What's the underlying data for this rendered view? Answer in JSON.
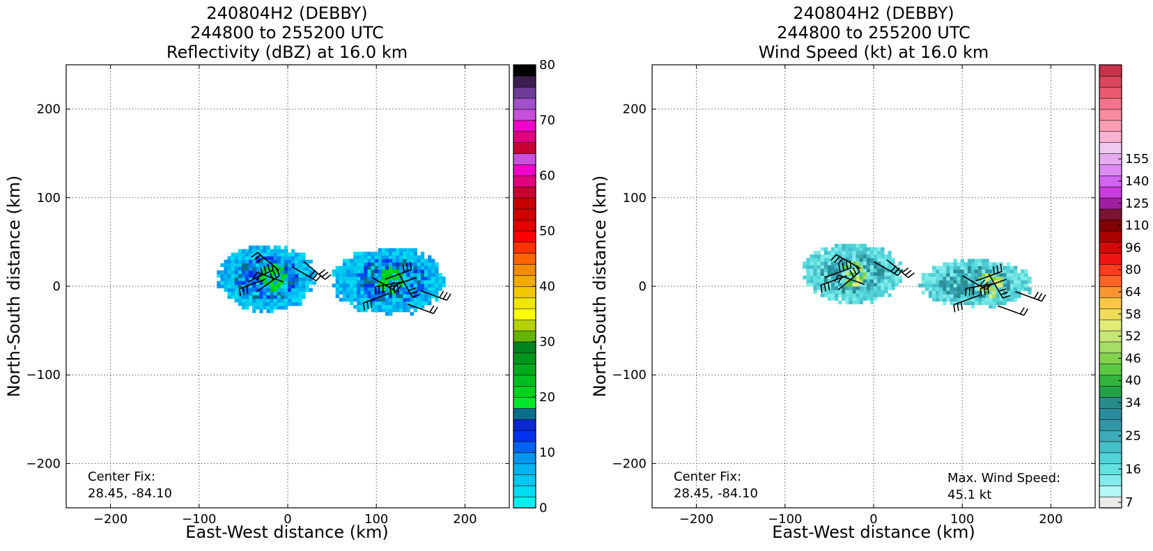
{
  "chart_data": [
    {
      "type": "heatmap",
      "title_lines": [
        "240804H2 (DEBBY)",
        "244800 to 255200 UTC",
        "Reflectivity (dBZ) at 16.0 km"
      ],
      "xlabel": "East-West distance (km)",
      "ylabel": "North-South distance (km)",
      "xlim": [
        -250,
        250
      ],
      "ylim": [
        -250,
        250
      ],
      "xticks": [
        -200,
        -100,
        0,
        100,
        200
      ],
      "yticks": [
        -200,
        -100,
        0,
        100,
        200
      ],
      "xtick_labels": [
        "−200",
        "−100",
        "0",
        "100",
        "200"
      ],
      "ytick_labels": [
        "−200",
        "−100",
        "0",
        "100",
        "200"
      ],
      "grid": true,
      "annotations": {
        "center_fix": [
          "Center Fix:",
          "28.45, -84.10"
        ]
      },
      "colorbar": {
        "levels": 32,
        "range": [
          0,
          80
        ],
        "ticks": [
          0,
          10,
          20,
          30,
          40,
          50,
          60,
          70,
          80
        ],
        "tick_labels": [
          "0",
          "10",
          "20",
          "30",
          "40",
          "50",
          "60",
          "70",
          "80"
        ],
        "colors": [
          "#00f0f0",
          "#00dcf0",
          "#00c8f0",
          "#00b4f0",
          "#0096f0",
          "#0078f0",
          "#0050f0",
          "#0032e6",
          "#0a6e8c",
          "#00e628",
          "#00dc1e",
          "#00d21e",
          "#00c31e",
          "#00b41e",
          "#00a01e",
          "#008c1e",
          "#64b400",
          "#b4d200",
          "#ffff00",
          "#f0e600",
          "#f0d200",
          "#f0b400",
          "#f09600",
          "#f07800",
          "#ff5a00",
          "#ff2d00",
          "#ff0000",
          "#e60000",
          "#d20000",
          "#c80000",
          "#c80032",
          "#e1007d",
          "#f000c8",
          "#dc28dc",
          "#b450d2",
          "#8c50b4",
          "#6e3c96",
          "#50286e",
          "#3c1e50",
          "#000000"
        ]
      },
      "echo_regions": [
        {
          "name": "west cluster",
          "center_km": [
            -18,
            8
          ],
          "extent_km": [
            [
              -80,
              30
            ],
            [
              -30,
              45
            ]
          ],
          "dominant_dbz": "2-12",
          "max_dbz": 22
        },
        {
          "name": "east cluster",
          "center_km": [
            115,
            5
          ],
          "extent_km": [
            [
              50,
              175
            ],
            [
              -33,
              42
            ]
          ],
          "dominant_dbz": "2-12",
          "max_dbz": 22
        }
      ]
    },
    {
      "type": "heatmap",
      "title_lines": [
        "240804H2 (DEBBY)",
        "244800 to 255200 UTC",
        "Wind Speed (kt) at 16.0 km"
      ],
      "xlabel": "East-West distance (km)",
      "ylabel": "North-South distance (km)",
      "xlim": [
        -250,
        250
      ],
      "ylim": [
        -250,
        250
      ],
      "xticks": [
        -200,
        -100,
        0,
        100,
        200
      ],
      "yticks": [
        -200,
        -100,
        0,
        100,
        200
      ],
      "xtick_labels": [
        "−200",
        "−100",
        "0",
        "100",
        "200"
      ],
      "ytick_labels": [
        "−200",
        "−100",
        "0",
        "100",
        "200"
      ],
      "grid": true,
      "annotations": {
        "center_fix": [
          "Center Fix:",
          "28.45, -84.10"
        ],
        "max_wind": [
          "Max. Wind Speed:",
          "45.1 kt"
        ]
      },
      "colorbar": {
        "levels": 40,
        "tick_labels": [
          "7",
          "16",
          "25",
          "34",
          "40",
          "46",
          "52",
          "58",
          "64",
          "80",
          "96",
          "110",
          "125",
          "140",
          "155"
        ],
        "tick_level_index": [
          0,
          3,
          6,
          9,
          11,
          13,
          15,
          17,
          19,
          21,
          23,
          25,
          27,
          29,
          31
        ],
        "colors": [
          "#ebebeb",
          "#b4f5f5",
          "#82ebeb",
          "#64e1e1",
          "#50d2d7",
          "#46beca",
          "#3caab9",
          "#3296a8",
          "#2a8c9a",
          "#288c8c",
          "#23a048",
          "#32b43c",
          "#5ac846",
          "#82d250",
          "#a5dc64",
          "#c8e678",
          "#e1eb78",
          "#f0dc5a",
          "#fac846",
          "#fa9632",
          "#ff6428",
          "#ff3c1e",
          "#f01414",
          "#d20a0a",
          "#aa0000",
          "#820000",
          "#781432",
          "#a01ea0",
          "#c83cdc",
          "#d264f0",
          "#dc8cf0",
          "#e6aaf0",
          "#f0c8f0",
          "#fab4d2",
          "#fa9eb4",
          "#fa8ca0",
          "#f5738c",
          "#eb5a6e",
          "#dc465a",
          "#c8324b",
          "#b41e46",
          "#a0143c"
        ]
      },
      "echo_regions": [
        {
          "name": "west cluster",
          "center_km": [
            -25,
            12
          ],
          "extent_km": [
            [
              -80,
              30
            ],
            [
              -20,
              45
            ]
          ],
          "dominant_kt": "22-30",
          "max_kt": 45.1
        },
        {
          "name": "east cluster",
          "center_km": [
            130,
            0
          ],
          "extent_km": [
            [
              50,
              175
            ],
            [
              -25,
              28
            ]
          ],
          "dominant_kt": "22-30",
          "max_kt": 40
        }
      ]
    }
  ]
}
